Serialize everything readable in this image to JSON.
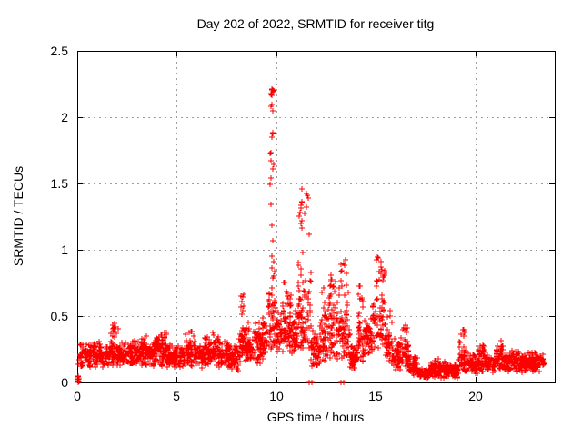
{
  "chart_data": {
    "type": "scatter",
    "title": "Day 202 of 2022, SRMTID for receiver titg",
    "xlabel": "GPS time / hours",
    "ylabel": "SRMTID / TECUs",
    "xlim": [
      0,
      24
    ],
    "ylim": [
      0,
      2.5
    ],
    "xticks": [
      0,
      5,
      10,
      15,
      20
    ],
    "yticks": [
      0,
      0.5,
      1,
      1.5,
      2,
      2.5
    ],
    "grid": "dashed-gray-at-major-ticks",
    "legend": "none",
    "marker": "plus",
    "colors": {
      "points": "#ff0000",
      "grid": "#9e9e9e",
      "axis": "#000000",
      "text": "#000000",
      "background": "#ffffff"
    },
    "data_x_range": [
      0,
      23.45
    ],
    "peaks": [
      {
        "x": 9.78,
        "y": 2.2
      },
      {
        "x": 11.5,
        "y": 1.47
      },
      {
        "x": 13.3,
        "y": 0.95
      },
      {
        "x": 15.2,
        "y": 0.95
      },
      {
        "x": 12.8,
        "y": 0.85
      },
      {
        "x": 10.5,
        "y": 0.78
      },
      {
        "x": 14.2,
        "y": 0.74
      },
      {
        "x": 8.3,
        "y": 0.67
      },
      {
        "x": 1.8,
        "y": 0.47
      },
      {
        "x": 16.5,
        "y": 0.45
      },
      {
        "x": 19.4,
        "y": 0.42
      },
      {
        "x": 21.2,
        "y": 0.33
      }
    ],
    "baseline_band": [
      [
        0.1,
        1.6,
        0.1,
        0.32,
        170,
        1.0
      ],
      [
        1.6,
        2.1,
        0.12,
        0.45,
        58,
        1.5
      ],
      [
        2.1,
        3.1,
        0.1,
        0.33,
        112,
        1.0
      ],
      [
        3.1,
        4.0,
        0.11,
        0.36,
        100,
        1.1
      ],
      [
        4.0,
        4.5,
        0.12,
        0.42,
        56,
        1.4
      ],
      [
        4.5,
        5.4,
        0.1,
        0.3,
        100,
        1.0
      ],
      [
        5.4,
        5.9,
        0.12,
        0.42,
        56,
        1.4
      ],
      [
        5.9,
        6.4,
        0.1,
        0.31,
        56,
        1.0
      ],
      [
        6.4,
        7.1,
        0.12,
        0.4,
        78,
        1.3
      ],
      [
        7.1,
        7.7,
        0.1,
        0.35,
        66,
        1.2
      ],
      [
        7.7,
        8.15,
        0.08,
        0.3,
        50,
        1.0
      ],
      [
        8.15,
        8.5,
        0.15,
        0.6,
        45,
        1.6
      ],
      [
        8.5,
        9.25,
        0.13,
        0.48,
        85,
        1.3
      ],
      [
        9.25,
        9.6,
        0.17,
        0.55,
        40,
        1.4
      ],
      [
        9.6,
        9.95,
        0.25,
        1.05,
        50,
        1.7
      ],
      [
        9.95,
        10.25,
        0.2,
        0.6,
        34,
        1.3
      ],
      [
        10.25,
        10.75,
        0.2,
        0.72,
        56,
        1.5
      ],
      [
        10.75,
        11.05,
        0.2,
        0.6,
        34,
        1.3
      ],
      [
        11.05,
        11.75,
        0.25,
        1.1,
        82,
        1.7
      ],
      [
        11.75,
        12.25,
        0.1,
        0.45,
        56,
        1.2
      ],
      [
        12.25,
        12.6,
        0.15,
        0.75,
        42,
        1.5
      ],
      [
        12.6,
        13.05,
        0.15,
        0.82,
        52,
        1.5
      ],
      [
        13.05,
        13.7,
        0.15,
        0.88,
        72,
        1.6
      ],
      [
        13.7,
        14.1,
        0.08,
        0.3,
        46,
        1.0
      ],
      [
        14.1,
        14.45,
        0.15,
        0.72,
        40,
        1.5
      ],
      [
        14.45,
        14.85,
        0.2,
        0.5,
        45,
        1.2
      ],
      [
        14.85,
        15.45,
        0.25,
        0.93,
        70,
        1.5
      ],
      [
        15.45,
        15.8,
        0.15,
        0.55,
        40,
        1.4
      ],
      [
        15.8,
        16.25,
        0.08,
        0.35,
        50,
        1.2
      ],
      [
        16.25,
        16.65,
        0.1,
        0.44,
        44,
        1.5
      ],
      [
        16.65,
        17.1,
        0.04,
        0.22,
        50,
        1.0
      ],
      [
        17.1,
        17.75,
        0.02,
        0.12,
        72,
        1.0
      ],
      [
        17.75,
        18.45,
        0.03,
        0.18,
        78,
        1.2
      ],
      [
        18.45,
        19.15,
        0.03,
        0.15,
        78,
        1.0
      ],
      [
        19.15,
        19.55,
        0.08,
        0.4,
        44,
        1.6
      ],
      [
        19.55,
        20.15,
        0.06,
        0.22,
        64,
        1.0
      ],
      [
        20.15,
        20.5,
        0.08,
        0.3,
        40,
        1.3
      ],
      [
        20.5,
        21.05,
        0.07,
        0.22,
        60,
        1.0
      ],
      [
        21.05,
        21.45,
        0.08,
        0.32,
        45,
        1.3
      ],
      [
        21.45,
        22.3,
        0.07,
        0.25,
        95,
        1.1
      ],
      [
        22.3,
        23.45,
        0.07,
        0.24,
        128,
        1.1
      ]
    ],
    "spike_clusters": [
      [
        9.7,
        9.87,
        1.05,
        2.0,
        13
      ],
      [
        9.71,
        9.86,
        2.03,
        2.22,
        11
      ],
      [
        11.15,
        11.65,
        1.08,
        1.47,
        16
      ],
      [
        8.2,
        8.4,
        0.45,
        0.67,
        9
      ],
      [
        13.15,
        13.55,
        0.8,
        0.95,
        7
      ],
      [
        15.05,
        15.35,
        0.8,
        0.95,
        7
      ],
      [
        1.7,
        1.95,
        0.38,
        0.47,
        6
      ],
      [
        12.65,
        12.95,
        0.7,
        0.85,
        6
      ],
      [
        10.35,
        10.6,
        0.62,
        0.78,
        6
      ],
      [
        14.1,
        14.32,
        0.6,
        0.74,
        5
      ],
      [
        19.3,
        19.5,
        0.3,
        0.4,
        5
      ],
      [
        16.45,
        16.62,
        0.3,
        0.45,
        5
      ],
      [
        21.1,
        21.35,
        0.24,
        0.33,
        4
      ],
      [
        20.2,
        20.45,
        0.22,
        0.3,
        4
      ]
    ],
    "zero_points": [
      [
        0.05,
        0.0
      ],
      [
        11.67,
        0.0
      ],
      [
        11.78,
        0.0
      ],
      [
        13.25,
        0.0
      ],
      [
        13.41,
        0.0
      ]
    ],
    "origin_cluster": [
      [
        0.03,
        0.01
      ],
      [
        0.06,
        0.02
      ],
      [
        0.09,
        0.03
      ],
      [
        0.04,
        0.04
      ],
      [
        0.08,
        0.01
      ],
      [
        0.06,
        0.05
      ],
      [
        0.05,
        0.03
      ],
      [
        0.05,
        0.14
      ]
    ]
  }
}
